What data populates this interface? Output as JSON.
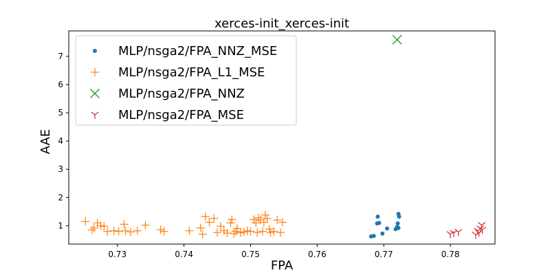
{
  "chart_data": {
    "type": "scatter",
    "title": "xerces-init_xerces-init",
    "xlabel": "FPA",
    "ylabel": "AAE",
    "xlim": [
      0.7227,
      0.7867
    ],
    "ylim": [
      0.35,
      7.9
    ],
    "xticks": [
      0.73,
      0.74,
      0.75,
      0.76,
      0.77,
      0.78
    ],
    "yticks": [
      1,
      2,
      3,
      4,
      5,
      6,
      7
    ],
    "grid": false,
    "legend_position": "top-left",
    "series": [
      {
        "name": "MLP/nsga2/FPA_NNZ_MSE",
        "marker": "circle",
        "color": "#1f77b4",
        "x": [
          0.7681,
          0.7685,
          0.7691,
          0.7693,
          0.7698,
          0.7705,
          0.7718,
          0.772,
          0.7721,
          0.7722,
          0.7722,
          0.7723,
          0.769
        ],
        "y": [
          0.62,
          0.64,
          1.32,
          1.1,
          0.72,
          0.9,
          0.88,
          0.96,
          1.08,
          0.92,
          1.42,
          1.32,
          1.08
        ]
      },
      {
        "name": "MLP/nsga2/FPA_L1_MSE",
        "marker": "plus",
        "color": "#ff7f0e",
        "x": [
          0.7252,
          0.7262,
          0.7265,
          0.727,
          0.7275,
          0.728,
          0.7285,
          0.7295,
          0.7302,
          0.731,
          0.7312,
          0.732,
          0.733,
          0.7342,
          0.7365,
          0.737,
          0.7408,
          0.7425,
          0.7428,
          0.7432,
          0.7438,
          0.7445,
          0.745,
          0.7455,
          0.746,
          0.7465,
          0.747,
          0.7472,
          0.7475,
          0.7478,
          0.748,
          0.7485,
          0.749,
          0.7495,
          0.75,
          0.7505,
          0.7508,
          0.751,
          0.7512,
          0.7515,
          0.7518,
          0.752,
          0.7522,
          0.7525,
          0.7528,
          0.753,
          0.7535,
          0.754,
          0.7545,
          0.7548
        ],
        "y": [
          1.15,
          0.85,
          0.92,
          1.1,
          1.0,
          0.98,
          0.8,
          0.82,
          0.8,
          1.05,
          0.82,
          0.78,
          0.82,
          1.02,
          0.86,
          0.8,
          0.82,
          0.92,
          0.7,
          1.32,
          1.12,
          1.26,
          0.76,
          0.98,
          0.82,
          0.74,
          1.1,
          1.22,
          0.72,
          0.8,
          0.9,
          0.75,
          0.78,
          0.82,
          0.8,
          1.22,
          1.1,
          0.76,
          1.28,
          1.2,
          0.8,
          1.12,
          1.38,
          1.25,
          0.88,
          0.76,
          0.8,
          1.2,
          0.76,
          1.12
        ]
      },
      {
        "name": "MLP/nsga2/FPA_NNZ",
        "marker": "x",
        "color": "#2ca02c",
        "x": [
          0.772
        ],
        "y": [
          7.59
        ]
      },
      {
        "name": "MLP/nsga2/FPA_MSE",
        "marker": "tri_up",
        "color": "#d62728",
        "x": [
          0.78,
          0.7805,
          0.7812,
          0.7838,
          0.7841,
          0.7843,
          0.7845,
          0.7847,
          0.7848
        ],
        "y": [
          0.7,
          0.74,
          0.78,
          0.68,
          0.82,
          0.75,
          0.9,
          1.02,
          0.86
        ]
      }
    ]
  }
}
